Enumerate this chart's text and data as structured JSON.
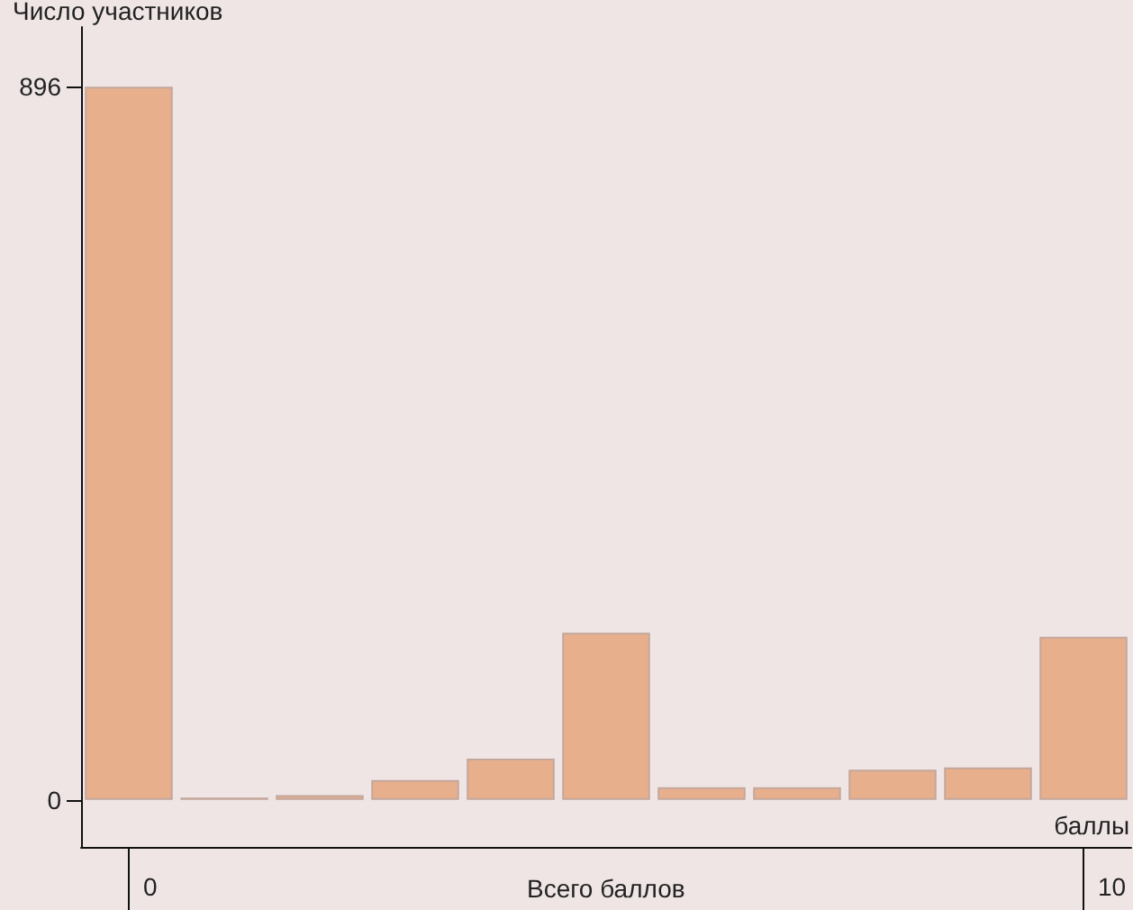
{
  "chart_data": {
    "type": "bar",
    "ylabel": "Число участников",
    "xlabel": "Всего баллов",
    "annotations": [
      "баллы"
    ],
    "categories": [
      "0",
      null,
      null,
      null,
      null,
      null,
      null,
      null,
      null,
      null,
      "10"
    ],
    "values": [
      896,
      3,
      6,
      25,
      52,
      210,
      16,
      16,
      38,
      41,
      205
    ],
    "color": "#e8af8c",
    "ylim": [
      -59,
      971
    ],
    "yticks": [
      0,
      896
    ],
    "grid": false
  }
}
